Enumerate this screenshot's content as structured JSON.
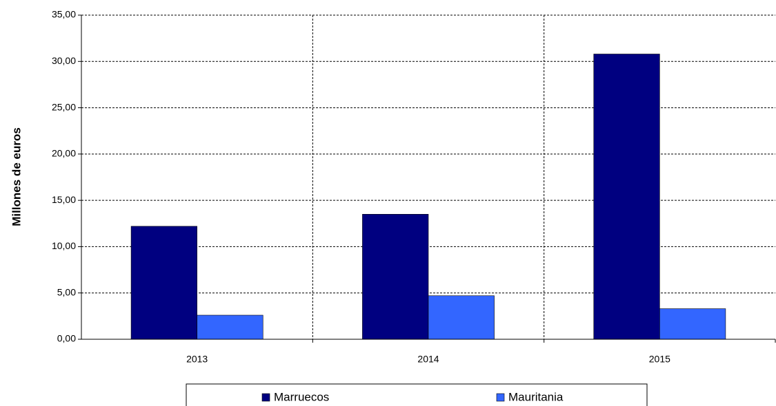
{
  "chart_data": {
    "type": "bar",
    "y_label": "Millones de euros",
    "categories": [
      "2013",
      "2014",
      "2015"
    ],
    "series": [
      {
        "name": "Marruecos",
        "color": "#000080",
        "values": [
          12.2,
          13.5,
          30.8
        ]
      },
      {
        "name": "Mauritania",
        "color": "#3366ff",
        "values": [
          2.6,
          4.7,
          3.3
        ]
      }
    ],
    "ylim": [
      0,
      35
    ],
    "yticks": [
      {
        "value": 0,
        "label": "0,00"
      },
      {
        "value": 5,
        "label": "5,00"
      },
      {
        "value": 10,
        "label": "10,00"
      },
      {
        "value": 15,
        "label": "15,00"
      },
      {
        "value": 20,
        "label": "20,00"
      },
      {
        "value": 25,
        "label": "25,00"
      },
      {
        "value": 30,
        "label": "30,00"
      },
      {
        "value": 35,
        "label": "35,00"
      }
    ],
    "grid": true,
    "legend": "bottom"
  }
}
